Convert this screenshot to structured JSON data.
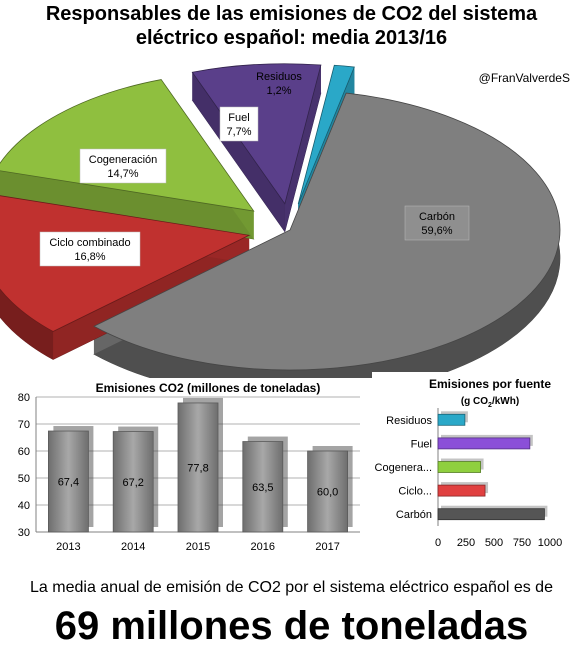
{
  "title_line1": "Responsables de las emisiones de CO2 del sistema",
  "title_line2": "eléctrico español: media 2013/16",
  "author": "@FranValverdeS",
  "caption": "La media anual de emisión de CO2 por el sistema eléctrico español es de",
  "headline": "69 millones de toneladas",
  "chart_data": [
    {
      "type": "pie",
      "slices": [
        {
          "label": "Carbón",
          "value_label": "59,6%",
          "value": 59.6,
          "color": "#7f7f7f"
        },
        {
          "label": "Ciclo combinado",
          "value_label": "16,8%",
          "value": 16.8,
          "color": "#c0312f"
        },
        {
          "label": "Cogeneración",
          "value_label": "14,7%",
          "value": 14.7,
          "color": "#8fbf3f"
        },
        {
          "label": "Fuel",
          "value_label": "7,7%",
          "value": 7.7,
          "color": "#5a3f8a"
        },
        {
          "label": "Residuos",
          "value_label": "1,2%",
          "value": 1.2,
          "color": "#2aa8c8"
        }
      ]
    },
    {
      "type": "bar",
      "title": "Emisiones CO2 (millones de toneladas)",
      "categories": [
        "2013",
        "2014",
        "2015",
        "2016",
        "2017"
      ],
      "values": [
        67.4,
        67.2,
        77.8,
        63.5,
        60.0
      ],
      "value_labels": [
        "67,4",
        "67,2",
        "77,8",
        "63,5",
        "60,0"
      ],
      "yticks": [
        30,
        40,
        50,
        60,
        70,
        80
      ],
      "ylim": [
        30,
        80
      ],
      "color": "#8c8c8c",
      "grid": true
    },
    {
      "type": "bar",
      "orientation": "horizontal",
      "title": "Emisiones por fuente",
      "unit_pre": "(g CO",
      "unit_sub": "2",
      "unit_post": "/kWh)",
      "categories": [
        "Residuos",
        "Fuel",
        "Cogenera...",
        "Ciclo...",
        "Carbón"
      ],
      "values": [
        240,
        820,
        380,
        420,
        950
      ],
      "colors": [
        "#2aa8c8",
        "#8b4fd8",
        "#8fcf3f",
        "#e04040",
        "#555555"
      ],
      "xticks": [
        0,
        250,
        500,
        750,
        1000
      ],
      "xlim": [
        0,
        1000
      ]
    }
  ]
}
